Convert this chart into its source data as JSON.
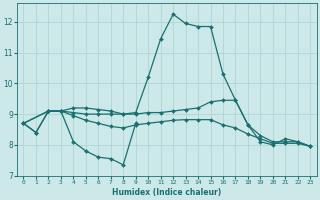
{
  "title": "",
  "xlabel": "Humidex (Indice chaleur)",
  "ylabel": "",
  "xlim": [
    -0.5,
    23.5
  ],
  "ylim": [
    7,
    12.6
  ],
  "yticks": [
    7,
    8,
    9,
    10,
    11,
    12
  ],
  "xticks": [
    0,
    1,
    2,
    3,
    4,
    5,
    6,
    7,
    8,
    9,
    10,
    11,
    12,
    13,
    14,
    15,
    16,
    17,
    18,
    19,
    20,
    21,
    22,
    23
  ],
  "bg_color": "#cce8e8",
  "grid_color": "#aad0d0",
  "line_color": "#1a7070",
  "line1_y": [
    8.7,
    8.4,
    9.1,
    9.1,
    8.1,
    7.8,
    7.6,
    7.55,
    7.35,
    8.7,
    null,
    null,
    null,
    null,
    null,
    null,
    null,
    null,
    null,
    null,
    null,
    null,
    null,
    null
  ],
  "line2_y": [
    8.7,
    8.4,
    9.1,
    9.1,
    9.2,
    9.2,
    9.15,
    9.1,
    9.0,
    9.05,
    10.2,
    11.45,
    12.25,
    11.95,
    11.85,
    11.85,
    10.3,
    9.45,
    8.65,
    8.1,
    8.0,
    8.2,
    8.1,
    7.95
  ],
  "line3_y": [
    8.7,
    null,
    9.1,
    9.1,
    9.05,
    9.0,
    9.0,
    9.0,
    9.0,
    9.0,
    9.05,
    9.05,
    9.1,
    9.15,
    9.2,
    9.4,
    9.45,
    9.45,
    8.65,
    8.3,
    8.1,
    8.1,
    8.1,
    7.95
  ],
  "line4_y": [
    8.7,
    null,
    9.1,
    9.1,
    8.95,
    8.8,
    8.7,
    8.6,
    8.55,
    8.65,
    8.7,
    8.75,
    8.8,
    8.82,
    8.82,
    8.82,
    8.65,
    8.55,
    8.35,
    8.2,
    8.05,
    8.05,
    8.05,
    7.95
  ]
}
